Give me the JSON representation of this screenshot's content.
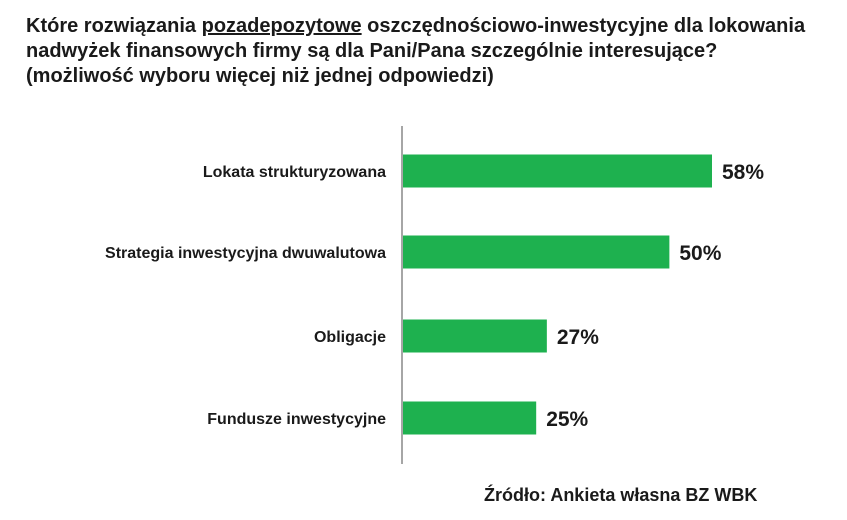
{
  "title": {
    "part1": "Które rozwiązania ",
    "underlined": "pozadepozytowe",
    "part2": " oszczędnościowo-inwestycyjne dla lokowania nadwyżek finansowych firmy są dla Pani/Pana szczególnie interesujące? (możliwość wyboru więcej niż jednej odpowiedzi)"
  },
  "chart_data": {
    "type": "bar",
    "orientation": "horizontal",
    "categories": [
      "Lokata strukturyzowana",
      "Strategia inwestycyjna dwuwalutowa",
      "Obligacje",
      "Fundusze inwestycyjne"
    ],
    "values": [
      58,
      50,
      27,
      25
    ],
    "value_labels": [
      "58%",
      "50%",
      "27%",
      "25%"
    ],
    "unit": "%",
    "xlim": [
      0,
      60
    ],
    "grid": false,
    "bar_color": "#1eb14f",
    "axis_color": "#888888"
  },
  "source": "Źródło:  Ankieta własna BZ WBK"
}
